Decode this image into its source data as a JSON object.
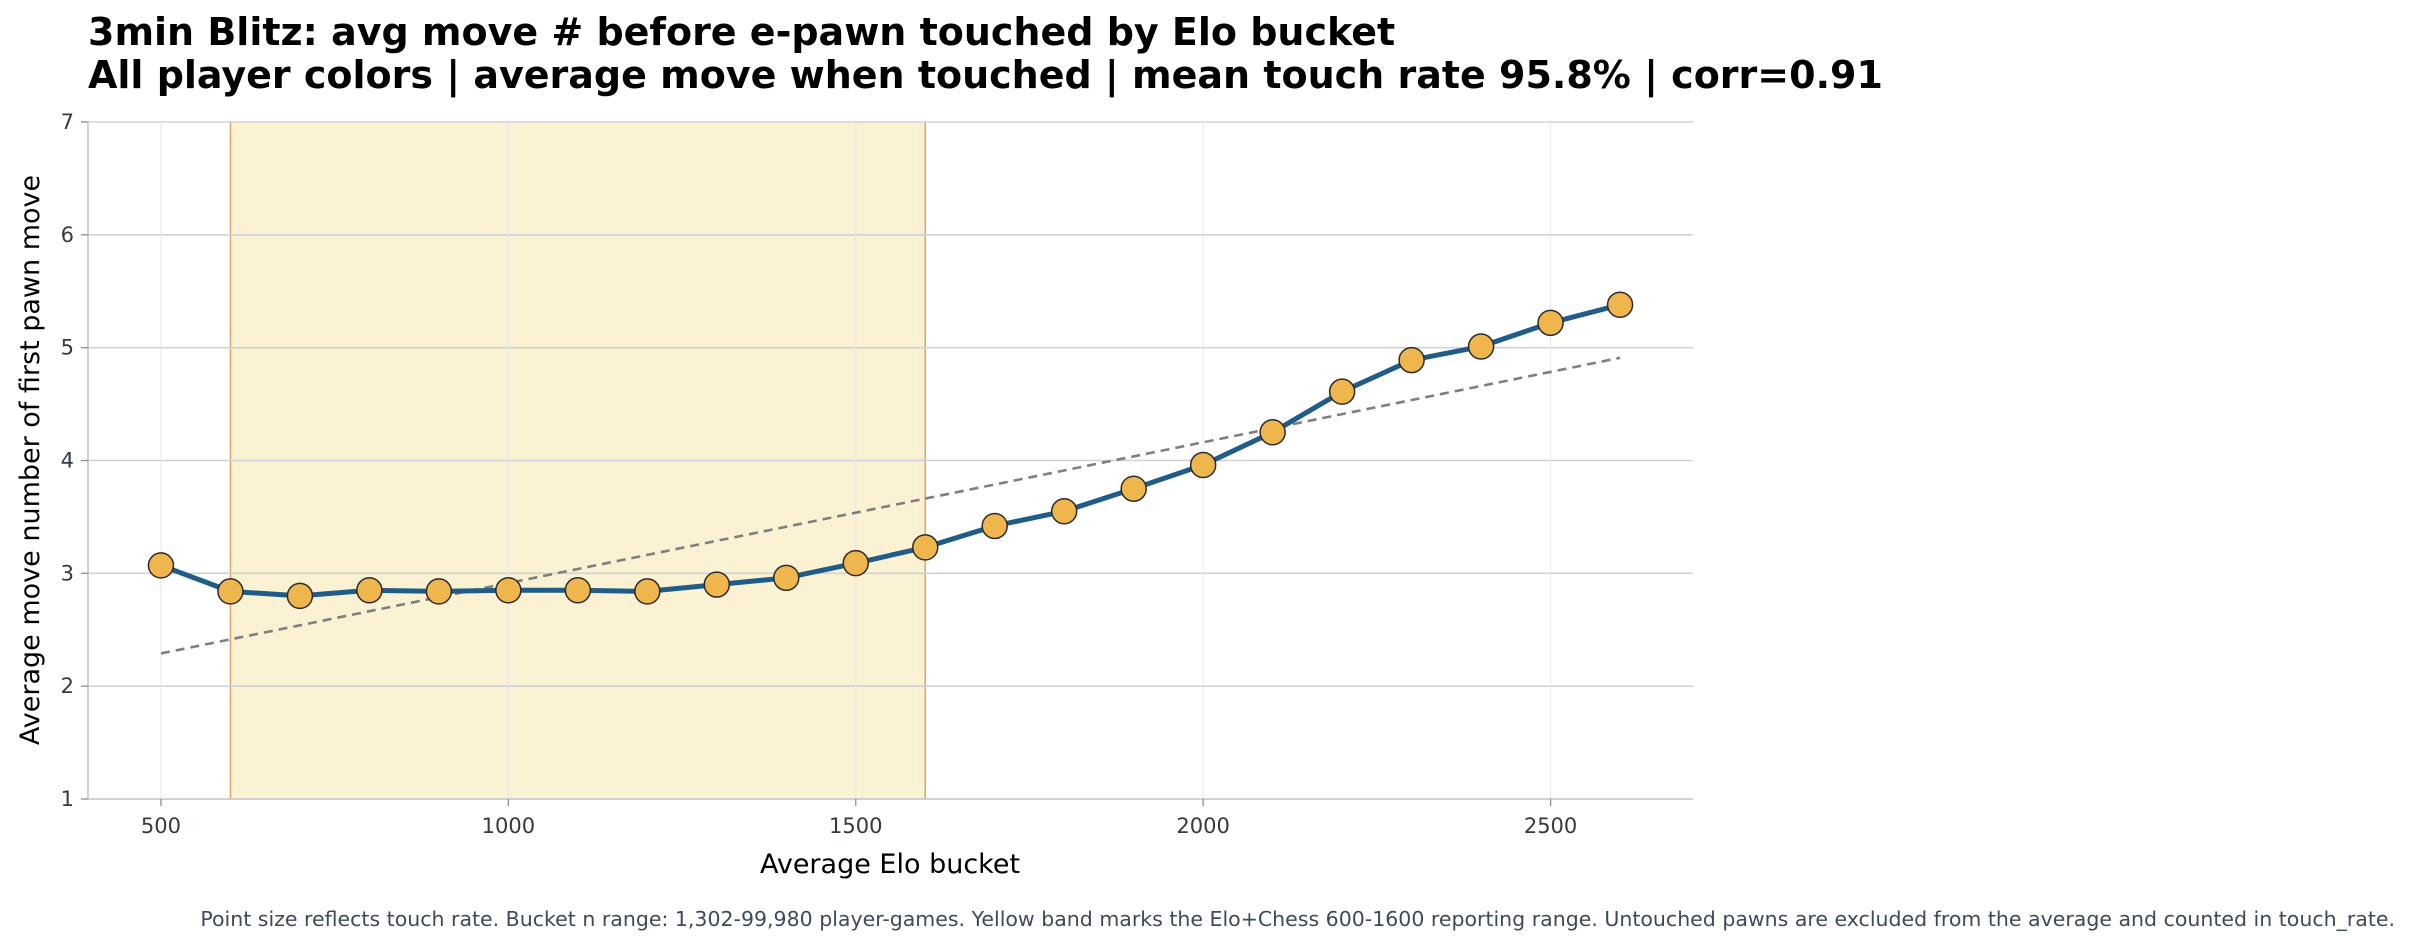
{
  "chart_data": {
    "type": "line",
    "title": "3min Blitz: avg move # before e-pawn touched by Elo bucket",
    "subtitle": "All player colors | average move when touched | mean touch rate 95.8% | corr=0.91",
    "xlabel": "Average Elo bucket",
    "ylabel": "Average move number of first pawn move",
    "caption": "Point size reflects touch rate. Bucket n range: 1,302-99,980 player-games. Yellow band marks the Elo+Chess 600-1600 reporting range. Untouched pawns are excluded from the average and counted in touch_rate.",
    "xlim": [
      395,
      2705
    ],
    "ylim": [
      1,
      7
    ],
    "xticks": [
      500,
      1000,
      1500,
      2000,
      2500
    ],
    "yticks": [
      1,
      2,
      3,
      4,
      5,
      6,
      7
    ],
    "grid": true,
    "band": {
      "x_start": 600,
      "x_end": 1600,
      "color": "#fbf1d3",
      "edge_color": "#e0a36a"
    },
    "series": [
      {
        "color": "#1f5c87",
        "marker_color": "#f0b64e",
        "x": [
          500,
          600,
          700,
          800,
          900,
          1000,
          1100,
          1200,
          1300,
          1400,
          1500,
          1600,
          1700,
          1800,
          1900,
          2000,
          2100,
          2200,
          2300,
          2400,
          2500,
          2600
        ],
        "y": [
          3.07,
          2.84,
          2.8,
          2.85,
          2.84,
          2.85,
          2.85,
          2.84,
          2.9,
          2.96,
          3.09,
          3.23,
          3.42,
          3.55,
          3.75,
          3.96,
          4.25,
          4.61,
          4.89,
          5.01,
          5.22,
          5.38
        ]
      }
    ],
    "trendline": {
      "x": [
        500,
        2600
      ],
      "y": [
        2.29,
        4.91
      ],
      "color": "#7f7f7f",
      "style": "dashed"
    }
  }
}
